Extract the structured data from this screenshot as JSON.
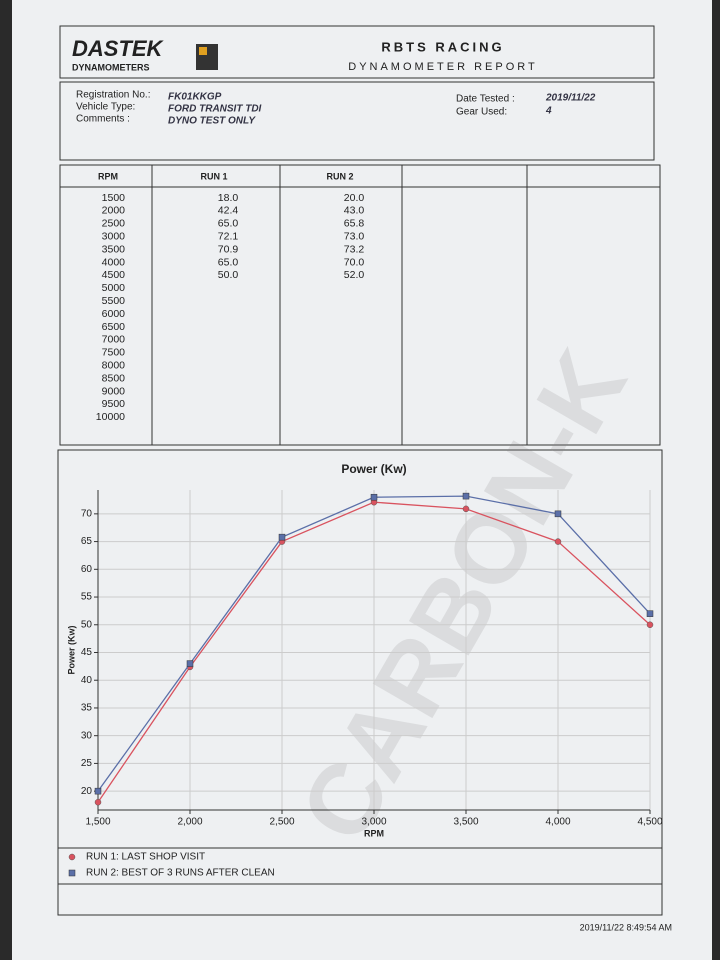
{
  "header": {
    "logo": "DASTEK",
    "logo_sub": "DYNAMOMETERS",
    "title": "RBTS RACING",
    "subtitle": "DYNAMOMETER REPORT"
  },
  "info": {
    "left": [
      [
        "Registration No.:",
        "FK01KKGP"
      ],
      [
        "Vehicle Type:",
        "FORD TRANSIT TDI"
      ],
      [
        "Comments :",
        "DYNO TEST ONLY"
      ]
    ],
    "right": [
      [
        "Date Tested :",
        "2019/11/22"
      ],
      [
        "Gear Used:",
        "4"
      ]
    ]
  },
  "table": {
    "columns": [
      {
        "header": "RPM",
        "values": [
          "1500",
          "2000",
          "2500",
          "3000",
          "3500",
          "4000",
          "4500",
          "5000",
          "5500",
          "6000",
          "6500",
          "7000",
          "7500",
          "8000",
          "8500",
          "9000",
          "9500",
          "10000"
        ]
      },
      {
        "header": "RUN 1",
        "values": [
          "18.0",
          "42.4",
          "65.0",
          "72.1",
          "70.9",
          "65.0",
          "50.0"
        ]
      },
      {
        "header": "RUN 2",
        "values": [
          "20.0",
          "43.0",
          "65.8",
          "73.0",
          "73.2",
          "70.0",
          "52.0"
        ]
      }
    ]
  },
  "chart_data": {
    "type": "line",
    "title": "Power (Kw)",
    "x_label": "RPM",
    "y_label": "Power (Kw)",
    "x": [
      1500,
      2000,
      2500,
      3000,
      3500,
      4000,
      4500
    ],
    "series": [
      {
        "name": "RUN 1: LAST SHOP VISIT",
        "color": "#d9535f",
        "values": [
          18.0,
          42.4,
          65.0,
          72.1,
          70.9,
          65.0,
          50.0
        ]
      },
      {
        "name": "RUN 2: BEST OF 3 RUNS AFTER CLEAN",
        "color": "#5b6fa8",
        "values": [
          20.0,
          43.0,
          65.8,
          73.0,
          73.2,
          70.0,
          52.0
        ]
      }
    ],
    "xlim": [
      1500,
      4500
    ],
    "xticks": [
      {
        "value": 1500,
        "label": "1,500"
      },
      {
        "value": 2000,
        "label": "2,000"
      },
      {
        "value": 2500,
        "label": "2,500"
      },
      {
        "value": 3000,
        "label": "3,000"
      },
      {
        "value": 3500,
        "label": "3,500"
      },
      {
        "value": 4000,
        "label": "4,000"
      },
      {
        "value": 4500,
        "label": "4,500"
      }
    ],
    "ylim": [
      16.6,
      74.3
    ],
    "yticks": [
      20,
      25,
      30,
      35,
      40,
      45,
      50,
      55,
      60,
      65,
      70
    ],
    "grid": true
  },
  "watermark": "CARBON-K",
  "footer": "2019/11/22 8:49:54 AM"
}
